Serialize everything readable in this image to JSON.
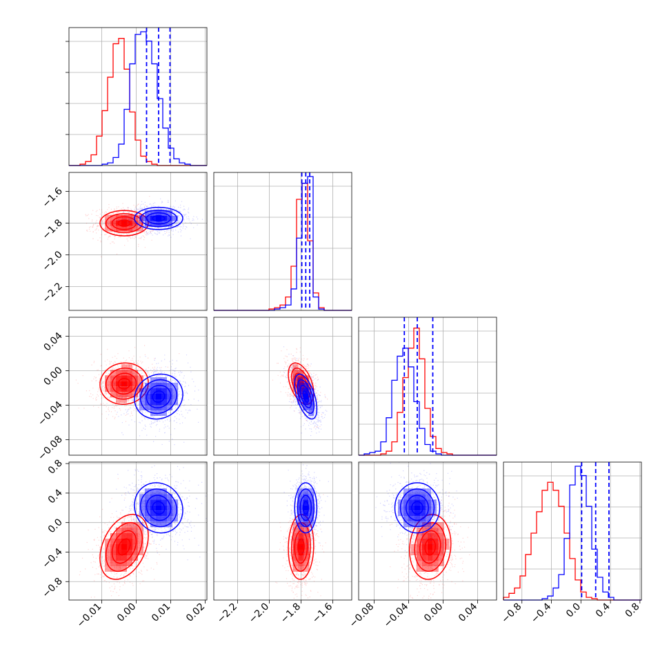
{
  "chart_data": {
    "type": "corner",
    "grid": true,
    "colors": {
      "series_a": "#0000ff",
      "series_b": "#ff0000"
    },
    "series": [
      {
        "color": "#0000ff",
        "quantiles": [
          [
            0.003,
            0.0065,
            0.0098
          ],
          [
            -1.795,
            -1.77,
            -1.745
          ],
          [
            -0.045,
            -0.03,
            -0.012
          ],
          [
            0.01,
            0.2,
            0.38
          ]
        ]
      },
      {
        "color": "#ff0000",
        "quantiles": []
      }
    ],
    "params": [
      {
        "range": [
          -0.0195,
          0.0205
        ],
        "ticks": [
          "-0.01",
          "0.00",
          "0.01",
          "0.02"
        ],
        "tick_values": [
          -0.01,
          0.0,
          0.01,
          0.02
        ]
      },
      {
        "range": [
          -2.35,
          -1.48
        ],
        "ticks": [
          "-2.2",
          "-2.0",
          "-1.8",
          "-1.6"
        ],
        "tick_values": [
          -2.2,
          -2.0,
          -1.8,
          -1.6
        ]
      },
      {
        "range": [
          -0.098,
          0.062
        ],
        "ticks": [
          "-0.08",
          "-0.04",
          "0.00",
          "0.04"
        ],
        "tick_values": [
          -0.08,
          -0.04,
          0.0,
          0.04
        ]
      },
      {
        "range": [
          -1.05,
          0.82
        ],
        "ticks": [
          "-0.8",
          "-0.4",
          "0.0",
          "0.4",
          "0.8"
        ],
        "tick_values": [
          -0.8,
          -0.4,
          0.0,
          0.4,
          0.8
        ]
      }
    ],
    "hist": [
      {
        "blue": [
          0,
          0,
          0,
          0,
          0,
          0,
          0.01,
          0.02,
          0.06,
          0.16,
          0.42,
          0.76,
          0.98,
          1.0,
          0.93,
          0.76,
          0.5,
          0.28,
          0.13,
          0.05,
          0.02,
          0.01,
          0,
          0,
          0
        ],
        "red": [
          0,
          0,
          0.01,
          0.03,
          0.08,
          0.22,
          0.41,
          0.66,
          0.91,
          0.95,
          0.72,
          0.4,
          0.19,
          0.07,
          0.03,
          0.01,
          0,
          0,
          0,
          0,
          0,
          0,
          0,
          0,
          0
        ]
      },
      {
        "blue": [
          0,
          0,
          0,
          0,
          0,
          0,
          0,
          0,
          0,
          0,
          0,
          0.01,
          0.02,
          0.04,
          0.16,
          0.54,
          0.95,
          1.0,
          0.1,
          0.01,
          0,
          0,
          0,
          0,
          0
        ],
        "red": [
          0,
          0,
          0,
          0,
          0,
          0,
          0,
          0,
          0,
          0,
          0.01,
          0.02,
          0.04,
          0.1,
          0.33,
          0.83,
          0.95,
          0.52,
          0.13,
          0.02,
          0,
          0,
          0,
          0,
          0
        ]
      },
      {
        "blue": [
          0,
          0.01,
          0.02,
          0.03,
          0.1,
          0.28,
          0.56,
          0.74,
          0.8,
          0.66,
          0.4,
          0.2,
          0.08,
          0.03,
          0.01,
          0,
          0,
          0,
          0,
          0,
          0,
          0,
          0,
          0,
          0
        ],
        "red": [
          0,
          0,
          0,
          0,
          0.01,
          0.03,
          0.1,
          0.32,
          0.58,
          0.8,
          0.95,
          0.72,
          0.35,
          0.14,
          0.05,
          0.02,
          0.01,
          0,
          0,
          0,
          0,
          0,
          0,
          0,
          0
        ]
      },
      {
        "blue": [
          0,
          0,
          0,
          0,
          0,
          0,
          0,
          0.01,
          0.03,
          0.09,
          0.19,
          0.46,
          0.86,
          1.0,
          0.93,
          0.7,
          0.38,
          0.17,
          0.06,
          0.02,
          0,
          0,
          0,
          0,
          0
        ],
        "red": [
          0.02,
          0.05,
          0.09,
          0.18,
          0.34,
          0.5,
          0.66,
          0.82,
          0.88,
          0.82,
          0.7,
          0.5,
          0.31,
          0.15,
          0.06,
          0.02,
          0.01,
          0,
          0,
          0,
          0,
          0,
          0,
          0,
          0
        ]
      }
    ],
    "gaussians": {
      "blue": {
        "mean": [
          0.0065,
          -1.77,
          -0.03,
          0.2
        ],
        "sd": [
          0.0035,
          0.035,
          0.013,
          0.17
        ],
        "corr": {
          "1-0": 0.0,
          "2-0": 0.1,
          "3-0": -0.1,
          "2-1": -0.55,
          "3-1": 0.0,
          "3-2": 0.0
        }
      },
      "red": {
        "mean": [
          -0.0035,
          -1.8,
          -0.015,
          -0.33
        ],
        "sd": [
          0.0035,
          0.04,
          0.012,
          0.22
        ],
        "corr": {
          "1-0": 0.0,
          "2-0": 0.05,
          "3-0": 0.35,
          "2-1": -0.45,
          "3-1": 0.05,
          "3-2": 0.1
        }
      }
    }
  }
}
